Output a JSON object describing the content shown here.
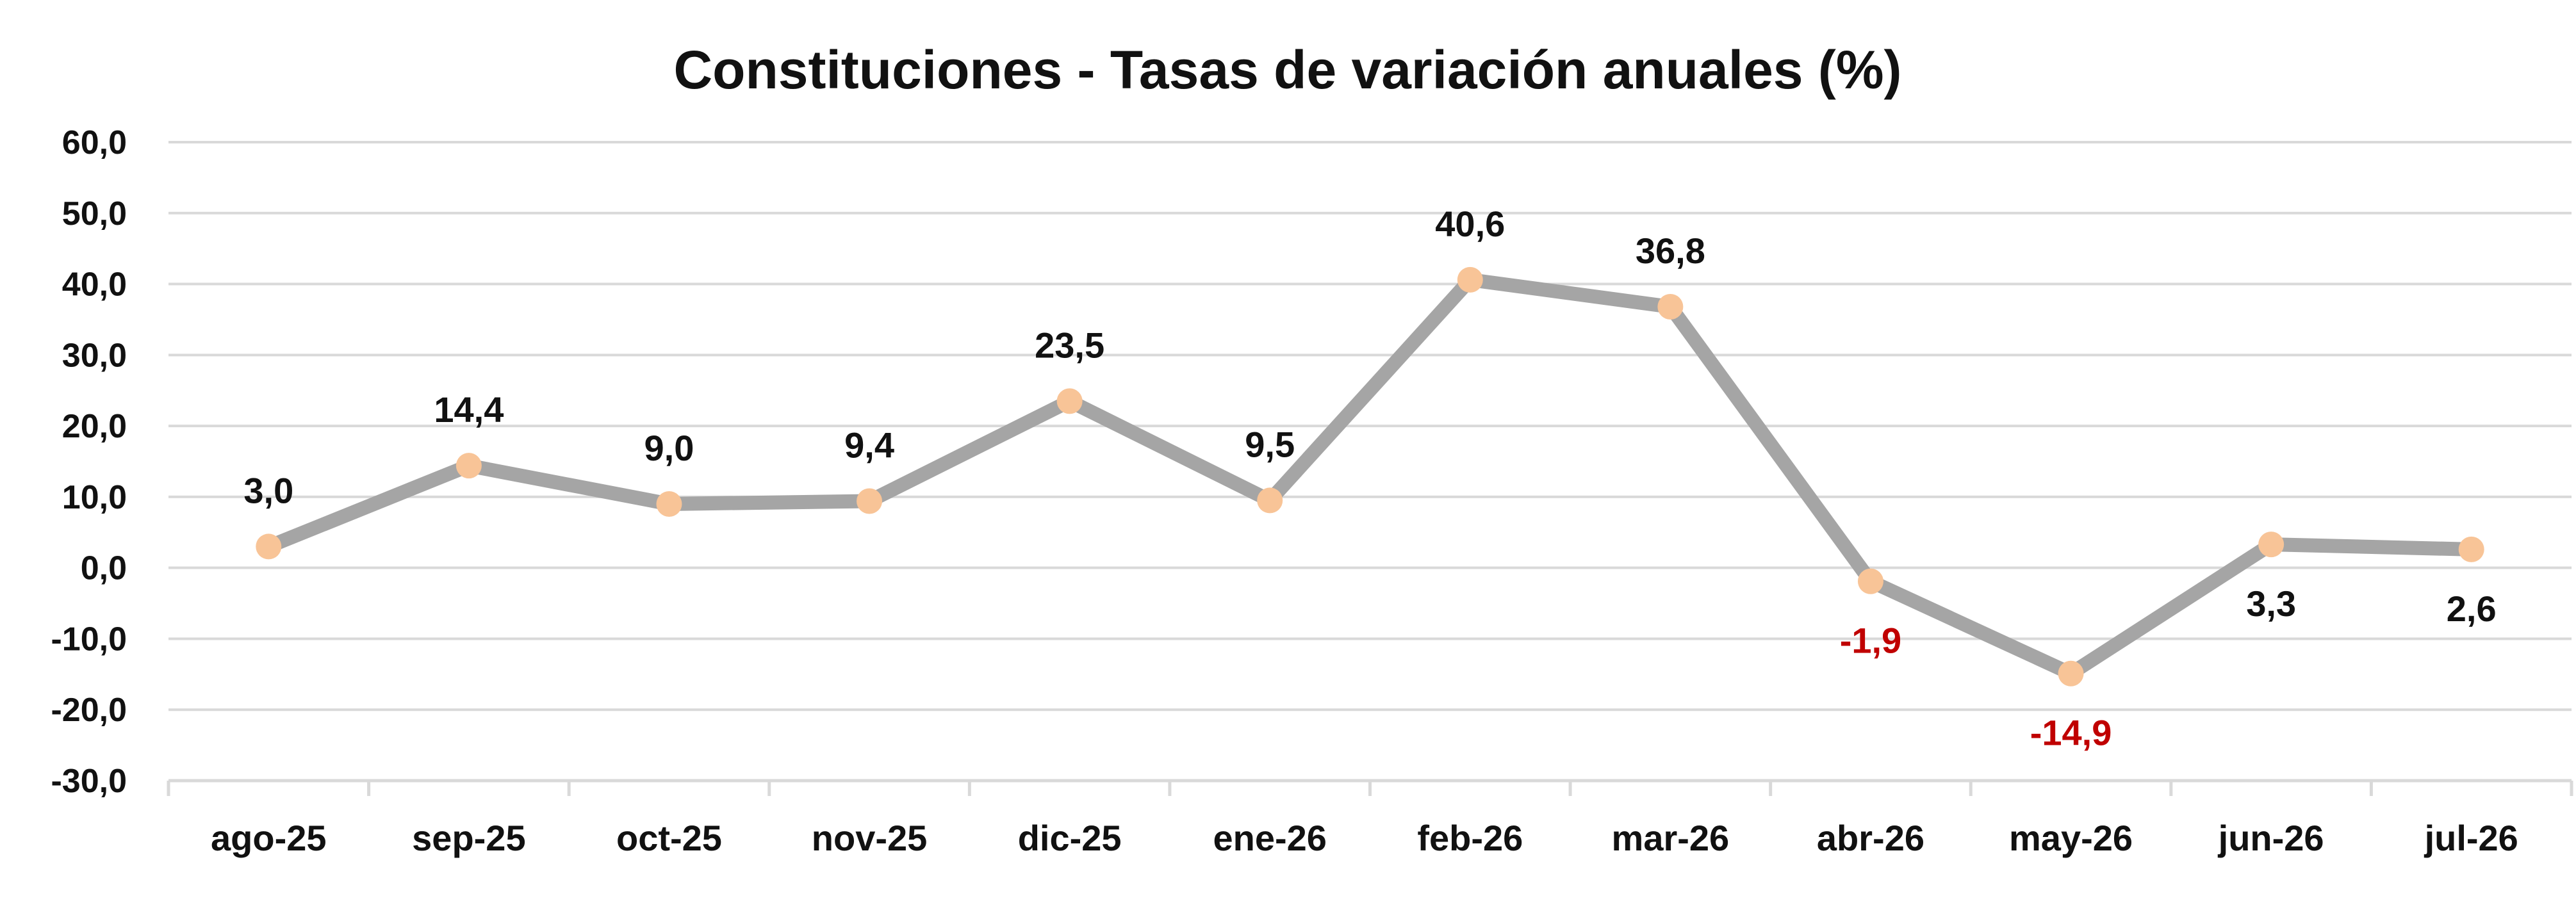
{
  "chart_data": {
    "type": "line",
    "title": "Constituciones - Tasas de variación anuales (%)",
    "xlabel": "",
    "ylabel": "",
    "categories": [
      "ago-25",
      "sep-25",
      "oct-25",
      "nov-25",
      "dic-25",
      "ene-26",
      "feb-26",
      "mar-26",
      "abr-26",
      "may-26",
      "jun-26",
      "jul-26"
    ],
    "series": [
      {
        "values": [
          3.0,
          14.4,
          9.0,
          9.4,
          23.5,
          9.5,
          40.6,
          36.8,
          -1.9,
          -14.9,
          3.3,
          2.6
        ],
        "labels": [
          "3,0",
          "14,4",
          "9,0",
          "9,4",
          "23,5",
          "9,5",
          "40,6",
          "36,8",
          "-1,9",
          "-14,9",
          "3,3",
          "2,6"
        ]
      }
    ],
    "ylim": [
      -30,
      60
    ],
    "yticks": [
      60,
      50,
      40,
      30,
      20,
      10,
      0,
      -10,
      -20,
      -30
    ],
    "ytick_labels": [
      "60,0",
      "50,0",
      "40,0",
      "30,0",
      "20,0",
      "10,0",
      "0,0",
      "-10,0",
      "-20,0",
      "-30,0"
    ],
    "grid": true,
    "legend": "none",
    "colors": {
      "line": "#a5a5a5",
      "marker": "#f8c497",
      "label_positive": "#111111",
      "label_negative": "#c00000"
    }
  }
}
